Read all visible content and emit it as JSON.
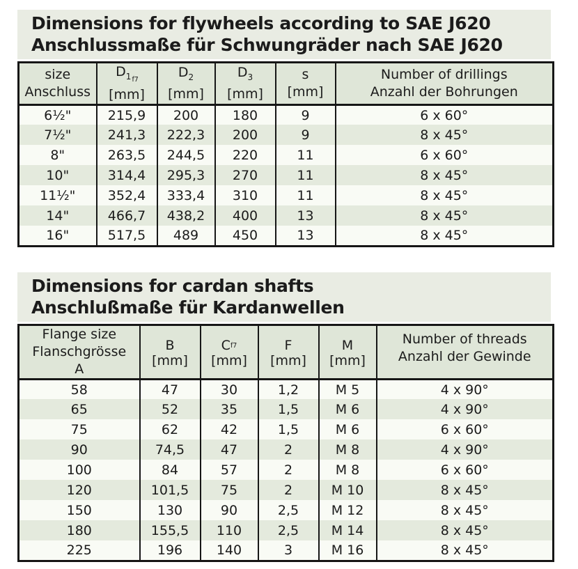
{
  "colors": {
    "title_bg": "#e9ece3",
    "header_bg": "#dfe6d8",
    "row_light": "#f9fbf5",
    "row_green": "#e4eadd",
    "border": "#161616",
    "text": "#1b1b1b"
  },
  "sections": [
    {
      "title_lines": [
        "Dimensions for flywheels according to SAE J620",
        "Anschlussmaße für Schwungräder nach SAE J620"
      ],
      "table": {
        "columns": [
          {
            "lines": [
              "size",
              "Anschluss"
            ]
          },
          {
            "base": "D",
            "sub": "1",
            "subsub": "f7",
            "unit": "[mm]"
          },
          {
            "base": "D",
            "sub": "2",
            "unit": "[mm]"
          },
          {
            "base": "D",
            "sub": "3",
            "unit": "[mm]"
          },
          {
            "base": "s",
            "unit": "[mm]"
          },
          {
            "lines": [
              "Number of drillings",
              "Anzahl der Bohrungen"
            ]
          }
        ],
        "rows": [
          [
            "6½\"",
            "215,9",
            "200",
            "180",
            "9",
            "6 x 60°"
          ],
          [
            "7½\"",
            "241,3",
            "222,3",
            "200",
            "9",
            "8 x 45°"
          ],
          [
            "8\"",
            "263,5",
            "244,5",
            "220",
            "11",
            "6 x 60°"
          ],
          [
            "10\"",
            "314,4",
            "295,3",
            "270",
            "11",
            "8 x 45°"
          ],
          [
            "11½\"",
            "352,4",
            "333,4",
            "310",
            "11",
            "8 x 45°"
          ],
          [
            "14\"",
            "466,7",
            "438,2",
            "400",
            "13",
            "8 x 45°"
          ],
          [
            "16\"",
            "517,5",
            "489",
            "450",
            "13",
            "8 x 45°"
          ]
        ]
      }
    },
    {
      "title_lines": [
        "Dimensions for cardan shafts",
        "Anschlußmaße für Kardanwellen"
      ],
      "table": {
        "columns": [
          {
            "lines": [
              "Flange size",
              "Flanschgrösse",
              "A"
            ]
          },
          {
            "base": "B",
            "unit": "[mm]"
          },
          {
            "base": "C",
            "sub": "f7",
            "unit": "[mm]"
          },
          {
            "base": "F",
            "unit": "[mm]"
          },
          {
            "base": "M",
            "unit": "[mm]"
          },
          {
            "lines": [
              "Number of threads",
              "Anzahl der Gewinde"
            ]
          }
        ],
        "rows": [
          [
            "58",
            "47",
            "30",
            "1,2",
            "M 5",
            "4 x 90°"
          ],
          [
            "65",
            "52",
            "35",
            "1,5",
            "M 6",
            "4 x 90°"
          ],
          [
            "75",
            "62",
            "42",
            "1,5",
            "M 6",
            "6 x 60°"
          ],
          [
            "90",
            "74,5",
            "47",
            "2",
            "M 8",
            "4 x 90°"
          ],
          [
            "100",
            "84",
            "57",
            "2",
            "M 8",
            "6 x 60°"
          ],
          [
            "120",
            "101,5",
            "75",
            "2",
            "M 10",
            "8 x 45°"
          ],
          [
            "150",
            "130",
            "90",
            "2,5",
            "M 12",
            "8 x 45°"
          ],
          [
            "180",
            "155,5",
            "110",
            "2,5",
            "M 14",
            "8 x 45°"
          ],
          [
            "225",
            "196",
            "140",
            "3",
            "M 16",
            "8 x 45°"
          ]
        ]
      }
    }
  ]
}
